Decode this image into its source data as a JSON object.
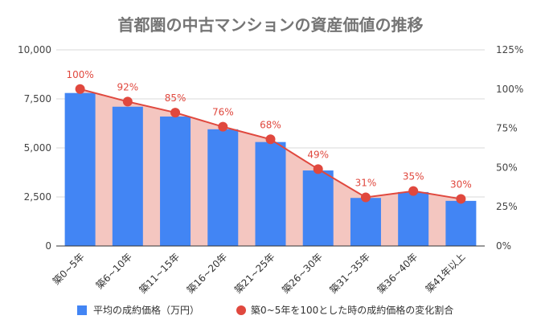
{
  "chart_data": {
    "type": "bar+line",
    "title": "首都圏の中古マンションの資産価値の推移",
    "categories": [
      "築0~5年",
      "築6~10年",
      "築11~15年",
      "築16~20年",
      "築21~25年",
      "築26~30年",
      "築31~35年",
      "築36~40年",
      "築41年以上"
    ],
    "series": [
      {
        "name": "平均の成約価格（万円）",
        "type": "bar",
        "axis": "left",
        "color": "#4285f4",
        "values": [
          7800,
          7100,
          6600,
          5950,
          5300,
          3850,
          2450,
          2750,
          2300
        ]
      },
      {
        "name": "築0~5年を100とした時の成約価格の変化割合",
        "type": "line",
        "axis": "right",
        "color": "#e0483e",
        "area_color": "#f4c6c0",
        "values": [
          100,
          92,
          85,
          76,
          68,
          49,
          31,
          35,
          30
        ],
        "labels": [
          "100%",
          "92%",
          "85%",
          "76%",
          "68%",
          "49%",
          "31%",
          "35%",
          "30%"
        ]
      }
    ],
    "y_left": {
      "min": 0,
      "max": 10000,
      "ticks": [
        "0",
        "2,500",
        "5,000",
        "7,500",
        "10,000"
      ]
    },
    "y_right": {
      "min": 0,
      "max": 125,
      "ticks": [
        "0%",
        "25%",
        "50%",
        "75%",
        "100%",
        "125%"
      ]
    },
    "legend": [
      {
        "label": "平均の成約価格（万円）",
        "marker": "square",
        "color": "#4285f4"
      },
      {
        "label": "築0~5年を100とした時の成約価格の変化割合",
        "marker": "circle",
        "color": "#e0483e"
      }
    ],
    "legend_position": "bottom",
    "grid": true
  }
}
